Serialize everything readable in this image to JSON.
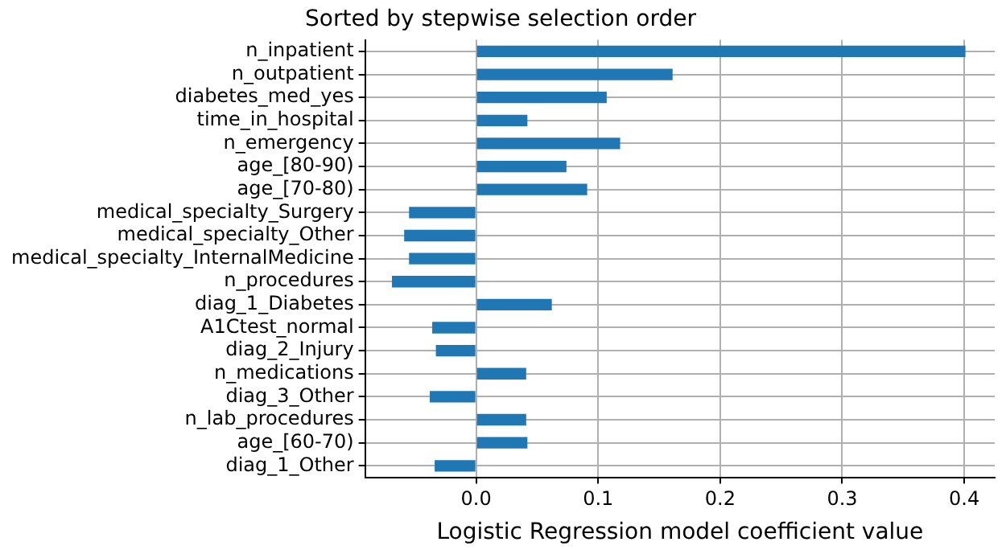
{
  "chart_data": {
    "type": "bar",
    "orientation": "horizontal",
    "title": "Sorted by stepwise selection order",
    "xlabel": "Logistic Regression model coefficient value",
    "categories": [
      "n_inpatient",
      "n_outpatient",
      "diabetes_med_yes",
      "time_in_hospital",
      "n_emergency",
      "age_[80-90)",
      "age_[70-80)",
      "medical_specialty_Surgery",
      "medical_specialty_Other",
      "medical_specialty_InternalMedicine",
      "n_procedures",
      "diag_1_Diabetes",
      "A1Ctest_normal",
      "diag_2_Injury",
      "n_medications",
      "diag_3_Other",
      "n_lab_procedures",
      "age_[60-70)",
      "diag_1_Other"
    ],
    "values": [
      0.401,
      0.161,
      0.107,
      0.042,
      0.118,
      0.074,
      0.091,
      -0.055,
      -0.059,
      -0.055,
      -0.069,
      0.062,
      -0.036,
      -0.033,
      0.041,
      -0.038,
      0.041,
      0.042,
      -0.034
    ],
    "color": "#1f77b4",
    "xlim": [
      -0.091,
      0.425
    ],
    "xticks": [
      {
        "value": 0,
        "label": "0.0"
      },
      0.1,
      0.2,
      0.3,
      0.4
    ],
    "grid": true
  }
}
